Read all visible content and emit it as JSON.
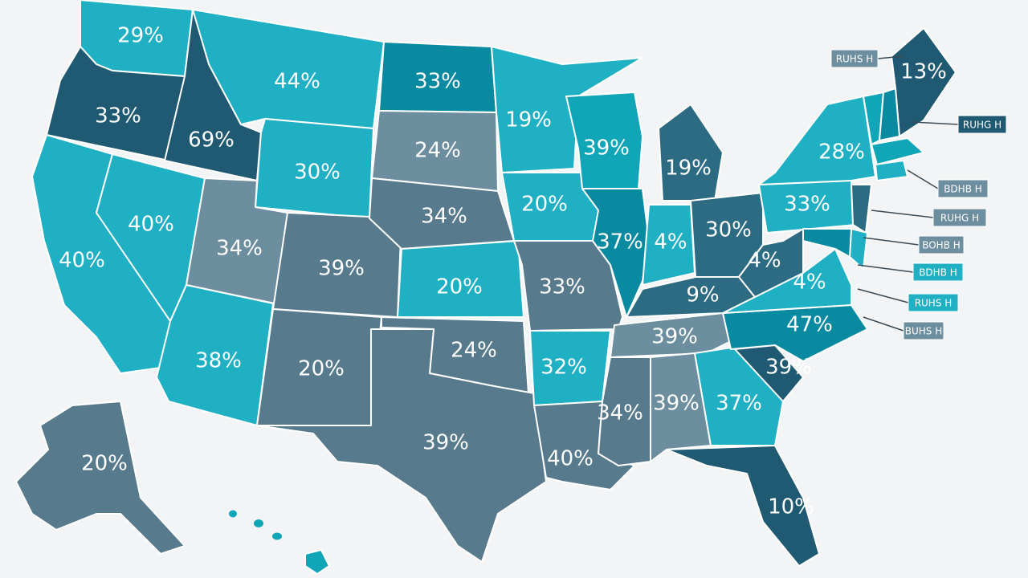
{
  "colors": {
    "teal-light": "#1fb0c4",
    "teal": "#11a5b8",
    "teal-dark": "#0a8aa0",
    "navy": "#2d6b82",
    "navy-dark": "#1f5a72",
    "slate": "#577a8d",
    "slate-light": "#6d8e9f"
  },
  "states": [
    {
      "id": "WA",
      "label": "29%",
      "color": "teal-light"
    },
    {
      "id": "OR",
      "label": "33%",
      "color": "navy-dark"
    },
    {
      "id": "CA",
      "label": "40%",
      "color": "teal-light"
    },
    {
      "id": "NV",
      "label": "40%",
      "color": "teal-light"
    },
    {
      "id": "ID",
      "label": "69%",
      "color": "navy-dark"
    },
    {
      "id": "MT",
      "label": "44%",
      "color": "teal-light"
    },
    {
      "id": "WY",
      "label": "30%",
      "color": "teal-light"
    },
    {
      "id": "UT",
      "label": "34%",
      "color": "slate-light"
    },
    {
      "id": "AZ",
      "label": "38%",
      "color": "teal-light"
    },
    {
      "id": "CO",
      "label": "39%",
      "color": "slate"
    },
    {
      "id": "NM",
      "label": "20%",
      "color": "slate"
    },
    {
      "id": "ND",
      "label": "33%",
      "color": "teal-dark"
    },
    {
      "id": "SD",
      "label": "24%",
      "color": "slate-light"
    },
    {
      "id": "NE",
      "label": "34%",
      "color": "slate"
    },
    {
      "id": "KS",
      "label": "20%",
      "color": "teal-light"
    },
    {
      "id": "OK",
      "label": "24%",
      "color": "slate"
    },
    {
      "id": "TX",
      "label": "39%",
      "color": "slate"
    },
    {
      "id": "MN",
      "label": "19%",
      "color": "teal-light"
    },
    {
      "id": "IA",
      "label": "20%",
      "color": "teal-light"
    },
    {
      "id": "MO",
      "label": "33%",
      "color": "slate"
    },
    {
      "id": "AR",
      "label": "32%",
      "color": "teal-light"
    },
    {
      "id": "LA",
      "label": "40%",
      "color": "slate"
    },
    {
      "id": "WI",
      "label": "39%",
      "color": "teal"
    },
    {
      "id": "IL",
      "label": "37%",
      "color": "teal-dark"
    },
    {
      "id": "MI",
      "label": "19%",
      "color": "navy"
    },
    {
      "id": "IN",
      "label": "4%",
      "color": "teal-light"
    },
    {
      "id": "OH",
      "label": "30%",
      "color": "navy"
    },
    {
      "id": "KY",
      "label": "9%",
      "color": "navy"
    },
    {
      "id": "TN",
      "label": "39%",
      "color": "slate-light"
    },
    {
      "id": "MS",
      "label": "34%",
      "color": "slate"
    },
    {
      "id": "AL",
      "label": "39%",
      "color": "slate-light"
    },
    {
      "id": "GA",
      "label": "37%",
      "color": "teal-light"
    },
    {
      "id": "FL",
      "label": "10%",
      "color": "navy-dark"
    },
    {
      "id": "SC",
      "label": "39%",
      "color": "navy-dark"
    },
    {
      "id": "NC",
      "label": "47%",
      "color": "teal-dark"
    },
    {
      "id": "VA",
      "label": "4%",
      "color": "teal-light"
    },
    {
      "id": "WV",
      "label": "4%",
      "color": "navy"
    },
    {
      "id": "PA",
      "label": "33%",
      "color": "teal-light"
    },
    {
      "id": "NY",
      "label": "28%",
      "color": "teal-light"
    },
    {
      "id": "ME",
      "label": "13%",
      "color": "navy-dark"
    },
    {
      "id": "VT",
      "label": "",
      "color": "teal"
    },
    {
      "id": "NH",
      "label": "",
      "color": "teal-dark"
    },
    {
      "id": "MA",
      "label": "",
      "color": "teal"
    },
    {
      "id": "CT",
      "label": "",
      "color": "teal-light"
    },
    {
      "id": "NJ",
      "label": "",
      "color": "navy"
    },
    {
      "id": "DE",
      "label": "",
      "color": "teal-light"
    },
    {
      "id": "MD",
      "label": "",
      "color": "teal-dark"
    },
    {
      "id": "AK",
      "label": "20%",
      "color": "slate"
    },
    {
      "id": "HI",
      "label": "",
      "color": "teal"
    }
  ],
  "callouts": [
    {
      "text": "RUHS H",
      "color": "slate-light"
    },
    {
      "text": "RUHG H",
      "color": "navy-dark"
    },
    {
      "text": "BDHB H",
      "color": "slate-light"
    },
    {
      "text": "RUHG H",
      "color": "slate-light"
    },
    {
      "text": "BOHB H",
      "color": "slate-light"
    },
    {
      "text": "BDHB H",
      "color": "teal-light"
    },
    {
      "text": "RUHS H",
      "color": "teal-light"
    },
    {
      "text": "BUHS H",
      "color": "slate-light"
    }
  ]
}
